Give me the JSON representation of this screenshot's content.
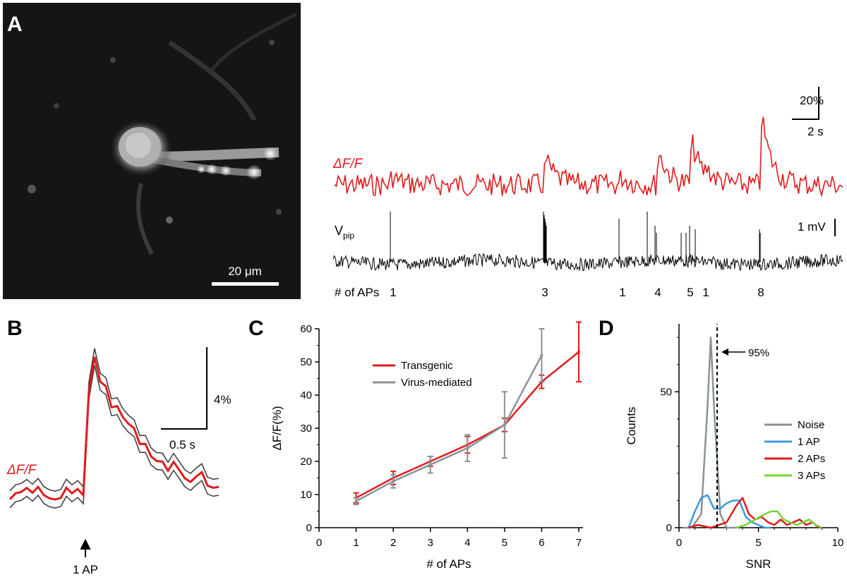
{
  "colors": {
    "red": "#e01b1b",
    "gray": "#8a9296",
    "black": "#000000",
    "blue": "#3a9ae2",
    "green": "#78d630",
    "darkgray": "#3a3a3a"
  },
  "panel_a": {
    "letter": "A",
    "scale_bar_label": "20 μm",
    "trace_label": "ΔF/F",
    "vpip_label": "V",
    "vpip_sub": "pip",
    "scale_pct": "20%",
    "scale_time": "2 s",
    "scale_mv": "1 mV",
    "ap_row_label": "# of APs",
    "ap_counts": [
      "1",
      "3",
      "1",
      "4",
      "5",
      "1",
      "8"
    ]
  },
  "panel_b": {
    "letter": "B",
    "trace_label": "ΔF/F",
    "scale_pct": "4%",
    "scale_time": "0.5 s",
    "stim_label": "1 AP"
  },
  "panel_c": {
    "letter": "C"
  },
  "panel_d": {
    "letter": "D",
    "threshold_label": "95%"
  },
  "chart_data": [
    {
      "type": "line",
      "panel": "C",
      "xlabel": "# of APs",
      "ylabel": "ΔF/F(%)",
      "xlim": [
        0,
        7
      ],
      "ylim": [
        0,
        60
      ],
      "xticks": [
        "0",
        "1",
        "2",
        "3",
        "4",
        "5",
        "6",
        "7"
      ],
      "yticks": [
        "0",
        "10",
        "20",
        "30",
        "40",
        "50",
        "60"
      ],
      "legend": [
        "Transgenic",
        "Virus-mediated"
      ],
      "series": [
        {
          "name": "Transgenic",
          "color": "#e01b1b",
          "x": [
            1,
            2,
            3,
            4,
            5,
            6,
            7
          ],
          "y": [
            9,
            15,
            20,
            25,
            31,
            44,
            53
          ],
          "err": [
            1.5,
            2,
            1.5,
            2.5,
            2,
            2,
            9
          ]
        },
        {
          "name": "Virus-mediated",
          "color": "#8a9296",
          "x": [
            1,
            2,
            3,
            4,
            5,
            6
          ],
          "y": [
            8,
            14,
            19,
            24,
            31,
            52
          ],
          "err": [
            1,
            2,
            2.5,
            4,
            10,
            8
          ]
        }
      ]
    },
    {
      "type": "line",
      "panel": "D",
      "xlabel": "SNR",
      "ylabel": "Counts",
      "xlim": [
        0,
        10
      ],
      "ylim": [
        0,
        75
      ],
      "xticks": [
        "0",
        "5",
        "10"
      ],
      "yticks": [
        "0",
        "50"
      ],
      "threshold_x": 2.4,
      "legend": [
        "Noise",
        "1 AP",
        "2 APs",
        "3 APs"
      ],
      "series": [
        {
          "name": "Noise",
          "color": "#8a9296",
          "x": [
            0.2,
            0.8,
            1.4,
            1.8,
            2.0,
            2.2,
            2.6,
            3.0,
            3.6
          ],
          "y": [
            0,
            0,
            5,
            45,
            70,
            45,
            5,
            0,
            0
          ]
        },
        {
          "name": "1 AP",
          "color": "#3a9ae2",
          "x": [
            0.6,
            1.0,
            1.4,
            1.8,
            2.2,
            2.6,
            3.0,
            3.4,
            3.8,
            4.2,
            4.6,
            5.0,
            5.4,
            5.8
          ],
          "y": [
            0,
            6,
            11,
            12,
            7,
            7,
            9,
            10,
            10,
            4,
            2,
            1,
            0,
            0
          ]
        },
        {
          "name": "2 APs",
          "color": "#e01b1b",
          "x": [
            0.6,
            1.2,
            2.0,
            3.0,
            3.6,
            4.0,
            4.4,
            4.8,
            5.2,
            5.6,
            6.0,
            6.4,
            6.8,
            7.2,
            7.6,
            8.0,
            8.4,
            8.8
          ],
          "y": [
            0,
            1,
            0,
            2,
            8,
            11,
            5,
            3,
            4,
            2,
            1,
            3,
            1,
            2,
            3,
            1,
            2,
            0
          ]
        },
        {
          "name": "3 APs",
          "color": "#78d630",
          "x": [
            3.6,
            4.2,
            4.8,
            5.4,
            5.8,
            6.2,
            6.6,
            7.0,
            7.4,
            7.8,
            8.2,
            8.6,
            9.0
          ],
          "y": [
            0,
            1,
            3,
            5,
            6,
            6,
            3,
            2,
            1,
            2,
            3,
            1,
            0
          ]
        }
      ]
    }
  ]
}
